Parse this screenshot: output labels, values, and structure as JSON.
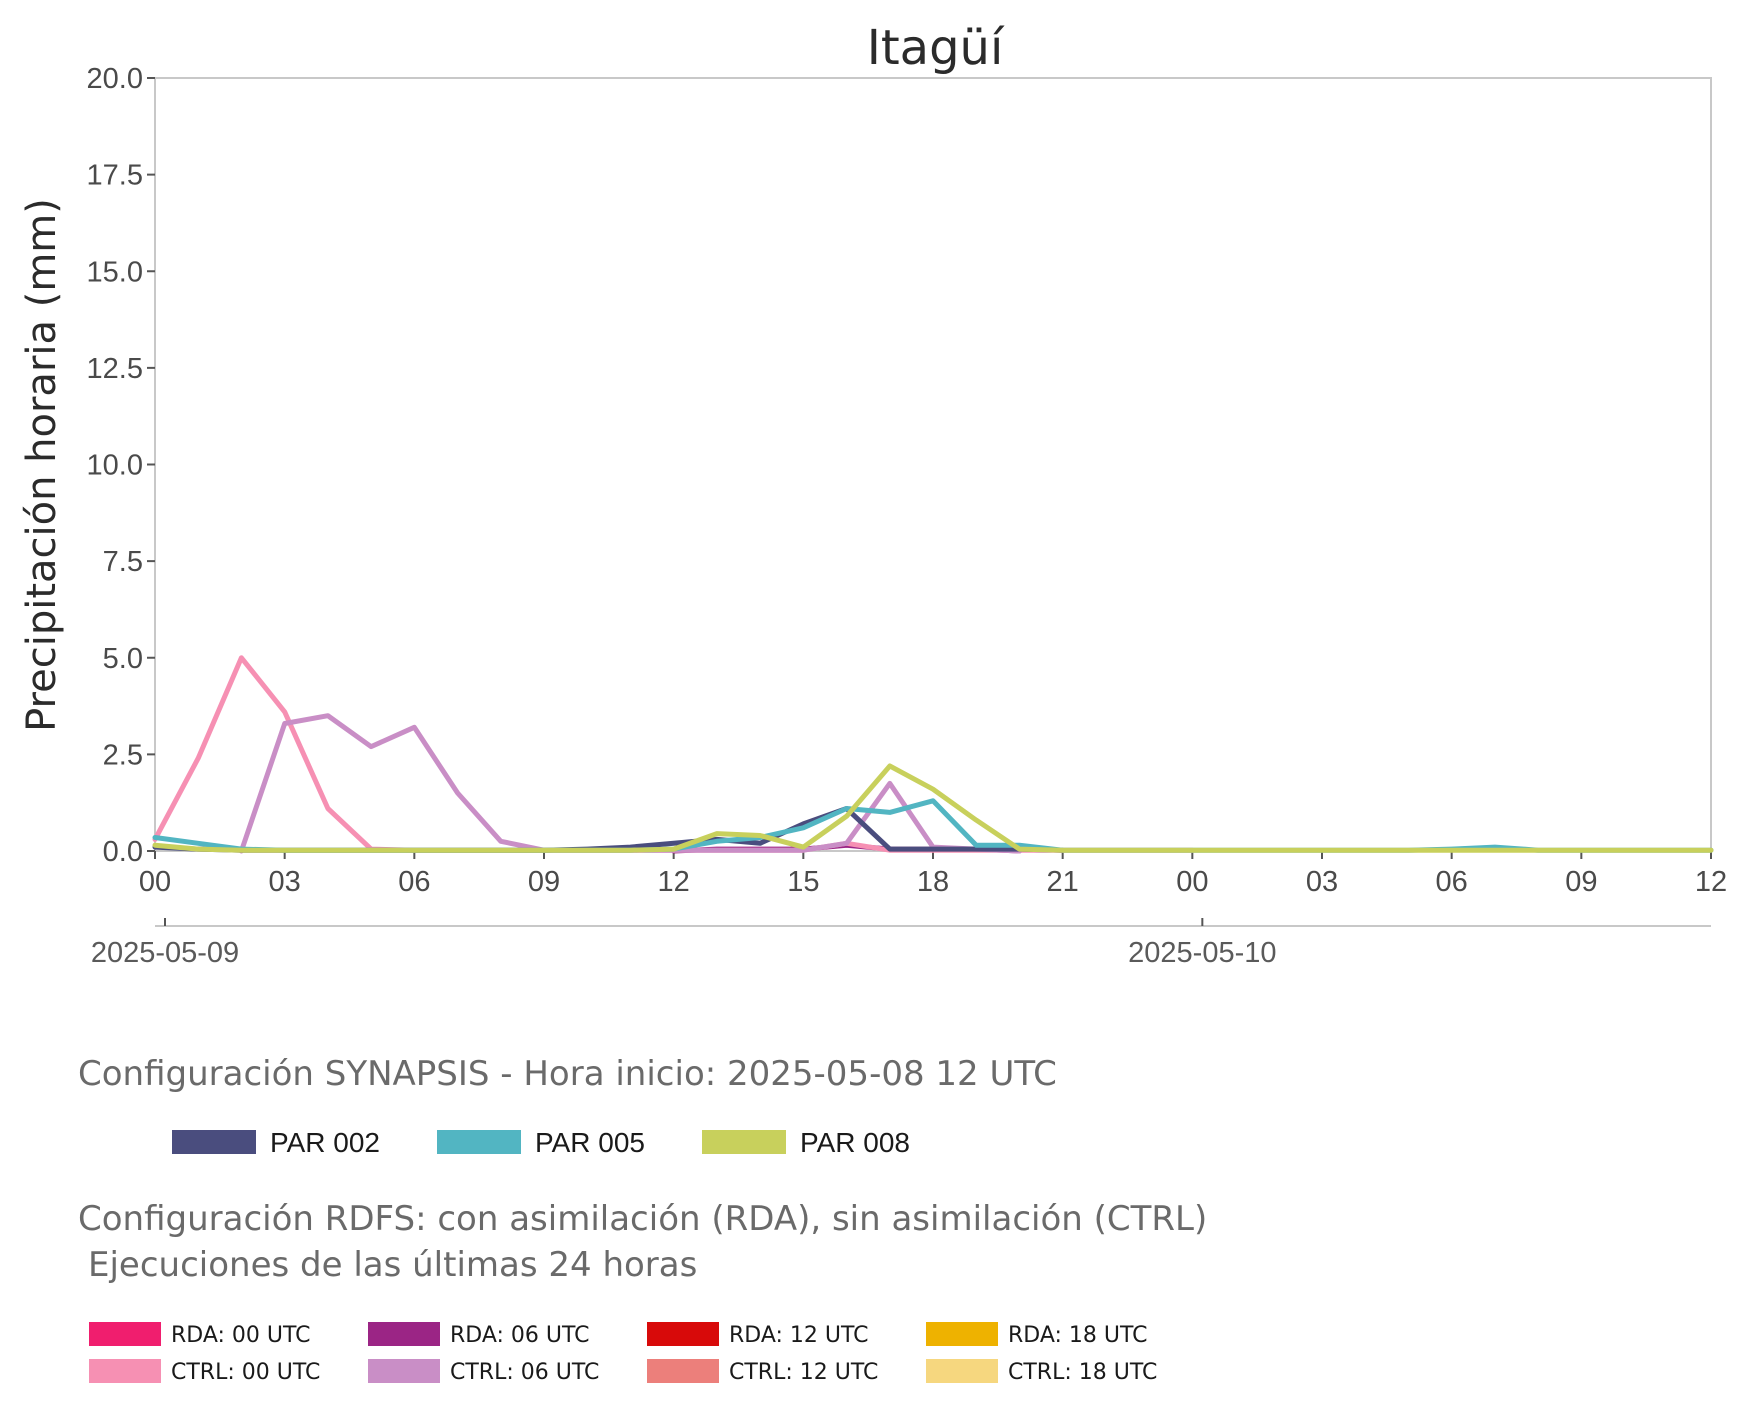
{
  "chart_data": {
    "type": "line",
    "title": "Itagüí",
    "ylabel": "Precipitación horaria (mm)",
    "xlabel": "",
    "ylim": [
      0,
      20
    ],
    "yticks": [
      "0.0",
      "2.5",
      "5.0",
      "7.5",
      "10.0",
      "12.5",
      "15.0",
      "17.5",
      "20.0"
    ],
    "xlim_hours": [
      0,
      36
    ],
    "xticks": [
      "00",
      "03",
      "06",
      "09",
      "12",
      "15",
      "18",
      "21",
      "00",
      "03",
      "06",
      "09",
      "12"
    ],
    "date_ticks": [
      {
        "label": "2025-05-09",
        "hour": 0
      },
      {
        "label": "2025-05-10",
        "hour": 24
      }
    ],
    "grid": false,
    "series": [
      {
        "name": "RDA: 00 UTC",
        "color": "#f01e6e",
        "x": [],
        "values": []
      },
      {
        "name": "RDA: 06 UTC",
        "color": "#9b2585",
        "x": [
          12,
          13,
          14,
          15,
          16,
          17,
          18,
          19,
          20
        ],
        "values": [
          0.0,
          0.05,
          0.05,
          0.05,
          0.15,
          0.05,
          0.05,
          0.05,
          0.0
        ]
      },
      {
        "name": "RDA: 12 UTC",
        "color": "#d80a0a",
        "x": [],
        "values": []
      },
      {
        "name": "RDA: 18 UTC",
        "color": "#eeb200",
        "x": [],
        "values": []
      },
      {
        "name": "CTRL: 00 UTC",
        "color": "#f690b3",
        "x": [
          0,
          1,
          2,
          3,
          4,
          5,
          6,
          7,
          8,
          9,
          10,
          11,
          12,
          13,
          14,
          15,
          16,
          17,
          18,
          19,
          20,
          21,
          22,
          23,
          24
        ],
        "values": [
          0.3,
          2.4,
          5.0,
          3.6,
          1.1,
          0.05,
          0.02,
          0.02,
          0.02,
          0.02,
          0.02,
          0.02,
          0.02,
          0.02,
          0.02,
          0.02,
          0.2,
          0.02,
          0.02,
          0.02,
          0.02,
          0.02,
          0.02,
          0.02,
          0.02
        ]
      },
      {
        "name": "CTRL: 06 UTC",
        "color": "#c98ec6",
        "x": [
          2,
          3,
          4,
          5,
          6,
          7,
          8,
          9,
          10,
          11,
          12,
          13,
          14,
          15,
          16,
          17,
          18,
          19,
          20
        ],
        "values": [
          0.0,
          3.3,
          3.5,
          2.7,
          3.2,
          1.5,
          0.25,
          0.02,
          0.02,
          0.02,
          0.02,
          0.02,
          0.02,
          0.02,
          0.2,
          1.75,
          0.1,
          0.05,
          0.0
        ]
      },
      {
        "name": "CTRL: 12 UTC",
        "color": "#ec7f7b",
        "x": [],
        "values": []
      },
      {
        "name": "CTRL: 18 UTC",
        "color": "#f6d77f",
        "x": [],
        "values": []
      },
      {
        "name": "PAR 002",
        "color": "#4a4d7e",
        "x": [
          0,
          1,
          2,
          3,
          4,
          5,
          6,
          7,
          8,
          9,
          10,
          11,
          12,
          13,
          14,
          15,
          16,
          17,
          18,
          19,
          20,
          21
        ],
        "values": [
          0.1,
          0.05,
          0.02,
          0.02,
          0.02,
          0.02,
          0.02,
          0.02,
          0.02,
          0.02,
          0.05,
          0.1,
          0.2,
          0.3,
          0.2,
          0.7,
          1.1,
          0.05,
          0.05,
          0.05,
          0.05,
          0.02
        ]
      },
      {
        "name": "PAR 005",
        "color": "#52b5c2",
        "x": [
          0,
          1,
          2,
          3,
          4,
          5,
          6,
          7,
          8,
          9,
          10,
          11,
          12,
          13,
          14,
          15,
          16,
          17,
          18,
          19,
          20,
          21,
          22,
          23,
          24,
          25,
          26,
          27,
          28,
          29,
          30,
          31,
          32,
          33,
          34,
          35,
          36
        ],
        "values": [
          0.35,
          0.2,
          0.05,
          0.02,
          0.02,
          0.02,
          0.02,
          0.02,
          0.02,
          0.02,
          0.02,
          0.02,
          0.05,
          0.25,
          0.35,
          0.6,
          1.1,
          1.0,
          1.3,
          0.15,
          0.15,
          0.02,
          0.02,
          0.02,
          0.02,
          0.02,
          0.02,
          0.02,
          0.02,
          0.02,
          0.05,
          0.1,
          0.02,
          0.02,
          0.02,
          0.02,
          0.02
        ]
      },
      {
        "name": "PAR 008",
        "color": "#c8d05c",
        "x": [
          0,
          1,
          2,
          3,
          4,
          5,
          6,
          7,
          8,
          9,
          10,
          11,
          12,
          13,
          14,
          15,
          16,
          17,
          18,
          19,
          20,
          21,
          22,
          23,
          24,
          25,
          26,
          27,
          28,
          29,
          30,
          31,
          32,
          33,
          34,
          35,
          36
        ],
        "values": [
          0.15,
          0.05,
          0.02,
          0.02,
          0.02,
          0.02,
          0.02,
          0.02,
          0.02,
          0.02,
          0.02,
          0.02,
          0.05,
          0.45,
          0.4,
          0.1,
          0.9,
          2.2,
          1.6,
          0.8,
          0.05,
          0.02,
          0.02,
          0.02,
          0.02,
          0.02,
          0.02,
          0.02,
          0.02,
          0.02,
          0.02,
          0.02,
          0.02,
          0.02,
          0.02,
          0.02,
          0.02
        ]
      }
    ]
  },
  "legend_synapsis": {
    "title": "Configuración SYNAPSIS - Hora inicio: 2025-05-08 12 UTC",
    "items": [
      {
        "label": "PAR 002",
        "color": "#4a4d7e"
      },
      {
        "label": "PAR 005",
        "color": "#52b5c2"
      },
      {
        "label": "PAR 008",
        "color": "#c8d05c"
      }
    ]
  },
  "legend_rdfs": {
    "title_line1": "Configuración RDFS: con asimilación (RDA), sin asimilación (CTRL)",
    "title_line2": "Ejecuciones de las últimas 24 horas",
    "items": [
      {
        "label": "RDA: 00 UTC",
        "color": "#f01e6e"
      },
      {
        "label": "RDA: 06 UTC",
        "color": "#9b2585"
      },
      {
        "label": "RDA: 12 UTC",
        "color": "#d80a0a"
      },
      {
        "label": "RDA: 18 UTC",
        "color": "#eeb200"
      },
      {
        "label": "CTRL: 00 UTC",
        "color": "#f690b3"
      },
      {
        "label": "CTRL: 06 UTC",
        "color": "#c98ec6"
      },
      {
        "label": "CTRL: 12 UTC",
        "color": "#ec7f7b"
      },
      {
        "label": "CTRL: 18 UTC",
        "color": "#f6d77f"
      }
    ]
  }
}
